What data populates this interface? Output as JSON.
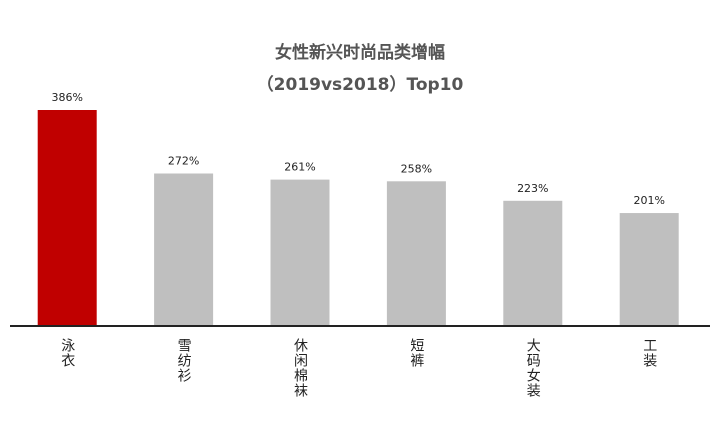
{
  "chart_data": {
    "type": "bar",
    "title": "女性新兴时尚品类增幅",
    "subtitle": "（2019vs2018）Top10",
    "categories": [
      "泳衣",
      "雪纺衫",
      "休闲棉袜",
      "短裤",
      "大码女装",
      "工装"
    ],
    "values": [
      386,
      272,
      261,
      258,
      223,
      201
    ],
    "value_labels": [
      "386%",
      "272%",
      "261%",
      "258%",
      "223%",
      "201%"
    ],
    "colors": [
      "#c00000",
      "#bfbfbf",
      "#bfbfbf",
      "#bfbfbf",
      "#bfbfbf",
      "#bfbfbf"
    ]
  }
}
